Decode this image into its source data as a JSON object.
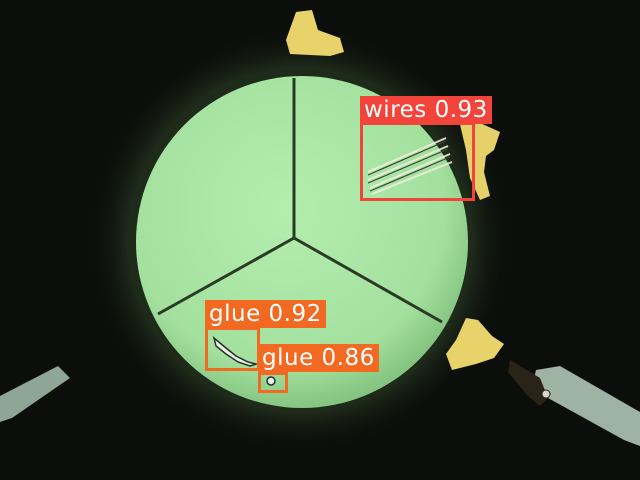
{
  "colors": {
    "background": "#0b0e0a",
    "disc": "#a6e3a1",
    "disc_edge": "#7fc27c",
    "divider": "#2a3a26",
    "clip": "#e8d36a",
    "probe": "#9fb3a4",
    "wires_box": "#f2443b",
    "glue_box": "#f26a22",
    "label_text": "#ffffff"
  },
  "detections": [
    {
      "class": "wires",
      "score": "0.93",
      "label": "wires 0.93",
      "color_key": "wires_box"
    },
    {
      "class": "glue",
      "score": "0.92",
      "label": "glue 0.92",
      "color_key": "glue_box"
    },
    {
      "class": "glue",
      "score": "0.86",
      "label": "glue 0.86",
      "color_key": "glue_box"
    }
  ]
}
